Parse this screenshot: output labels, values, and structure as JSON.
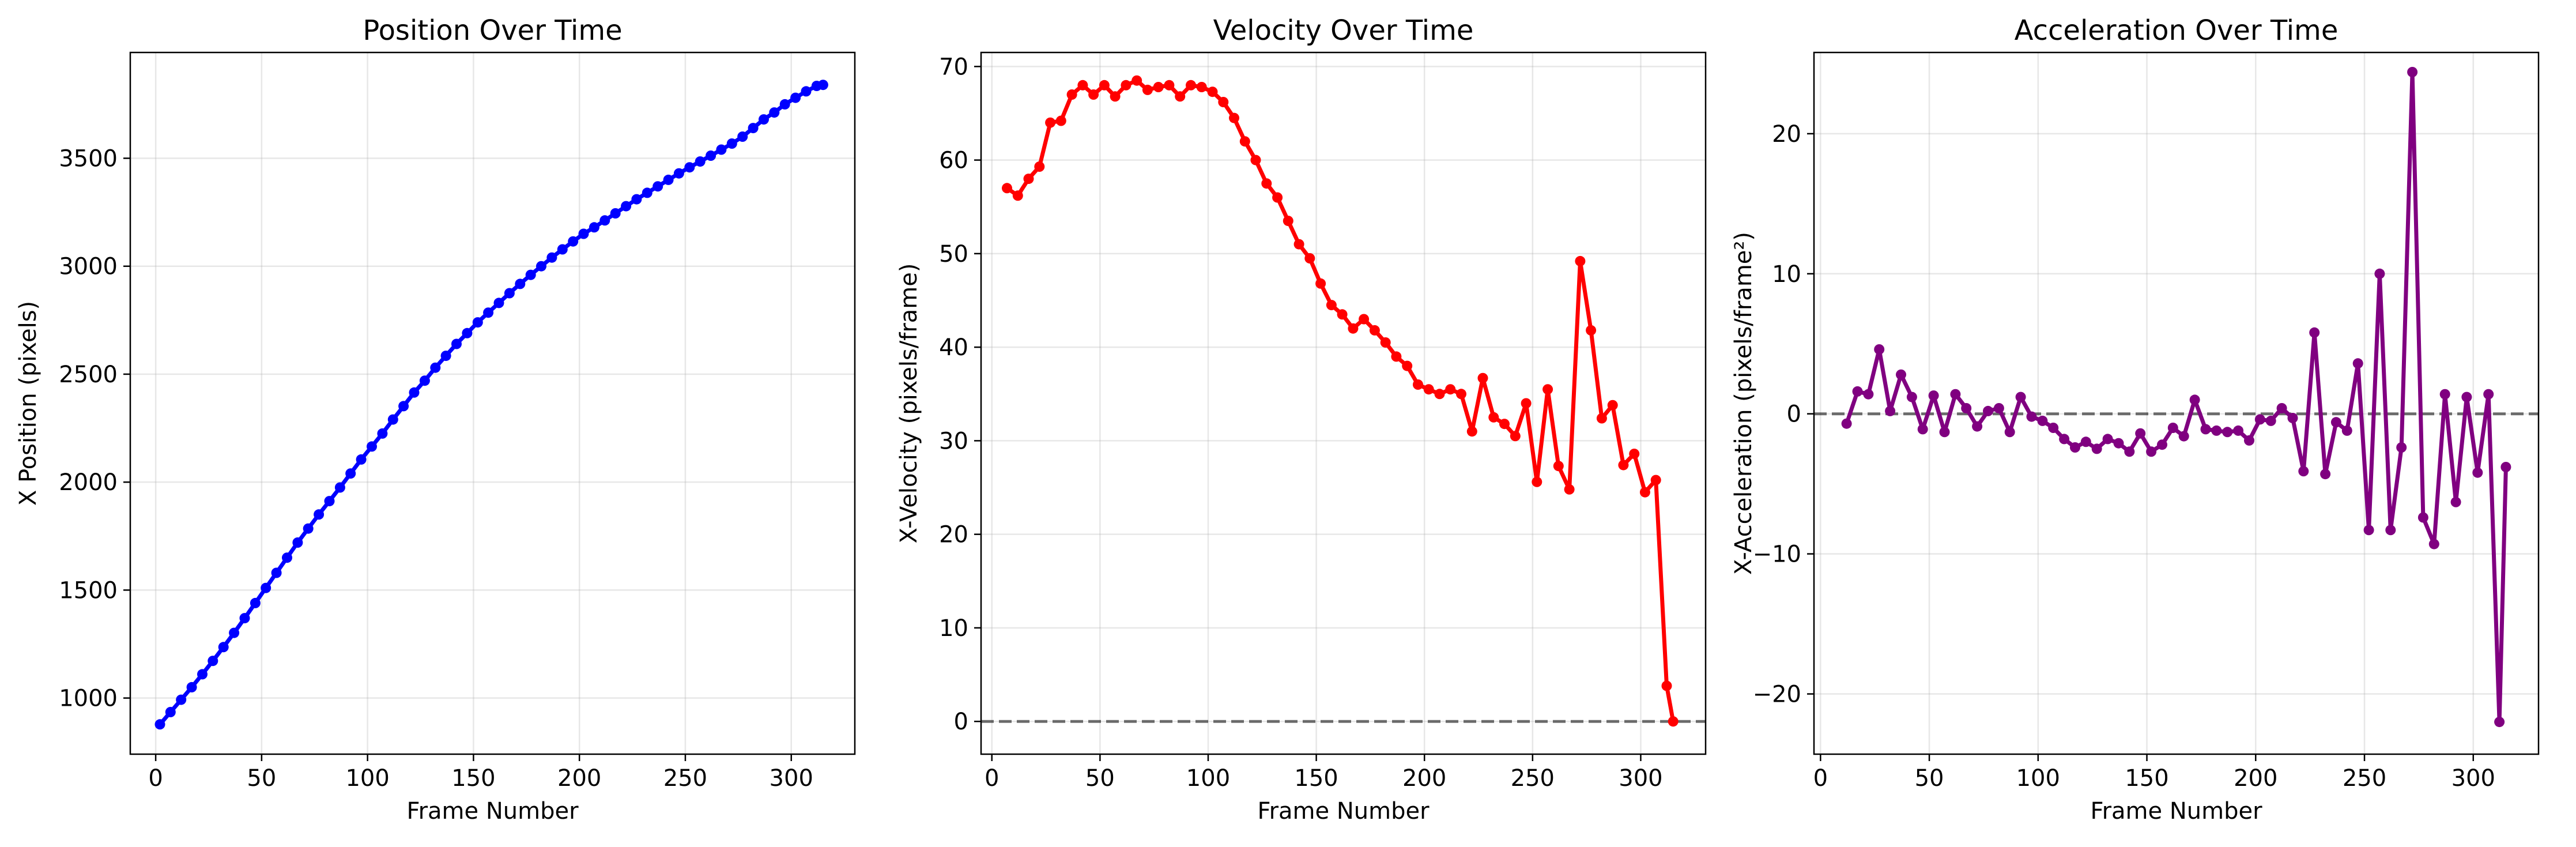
{
  "chart_data": [
    {
      "type": "line",
      "title": "Position Over Time",
      "xlabel": "Frame Number",
      "ylabel": "X Position (pixels)",
      "xlim": [
        -12,
        330
      ],
      "ylim": [
        740,
        3990
      ],
      "xticks": [
        0,
        50,
        100,
        150,
        200,
        250,
        300
      ],
      "yticks": [
        1000,
        1500,
        2000,
        2500,
        3000,
        3500
      ],
      "grid": true,
      "zero_line": false,
      "series": [
        {
          "color": "#0000ff",
          "marker": "circle",
          "x": [
            2,
            7,
            12,
            17,
            22,
            27,
            32,
            37,
            42,
            47,
            52,
            57,
            62,
            67,
            72,
            77,
            82,
            87,
            92,
            97,
            102,
            107,
            112,
            117,
            122,
            127,
            132,
            137,
            142,
            147,
            152,
            157,
            162,
            167,
            172,
            177,
            182,
            187,
            192,
            197,
            202,
            207,
            212,
            217,
            222,
            227,
            232,
            237,
            242,
            247,
            252,
            257,
            262,
            267,
            272,
            277,
            282,
            287,
            292,
            297,
            302,
            307,
            312,
            315
          ],
          "y": [
            878,
            935,
            992,
            1050,
            1110,
            1172,
            1236,
            1302,
            1370,
            1440,
            1510,
            1580,
            1650,
            1720,
            1785,
            1850,
            1912,
            1975,
            2040,
            2105,
            2165,
            2225,
            2290,
            2352,
            2415,
            2470,
            2530,
            2585,
            2640,
            2690,
            2740,
            2785,
            2830,
            2875,
            2918,
            2960,
            3000,
            3040,
            3078,
            3115,
            3150,
            3180,
            3212,
            3245,
            3278,
            3310,
            3340,
            3370,
            3400,
            3430,
            3458,
            3485,
            3512,
            3540,
            3568,
            3600,
            3640,
            3680,
            3712,
            3750,
            3780,
            3810,
            3835,
            3840
          ]
        }
      ]
    },
    {
      "type": "line",
      "title": "Velocity Over Time",
      "xlabel": "Frame Number",
      "ylabel": "X-Velocity (pixels/frame)",
      "xlim": [
        -5,
        330
      ],
      "ylim": [
        -3.5,
        71.5
      ],
      "xticks": [
        0,
        50,
        100,
        150,
        200,
        250,
        300
      ],
      "yticks": [
        0,
        10,
        20,
        30,
        40,
        50,
        60,
        70
      ],
      "grid": true,
      "zero_line": true,
      "series": [
        {
          "color": "#ff0000",
          "marker": "circle",
          "x": [
            7,
            12,
            17,
            22,
            27,
            32,
            37,
            42,
            47,
            52,
            57,
            62,
            67,
            72,
            77,
            82,
            87,
            92,
            97,
            102,
            107,
            112,
            117,
            122,
            127,
            132,
            137,
            142,
            147,
            152,
            157,
            162,
            167,
            172,
            177,
            182,
            187,
            192,
            197,
            202,
            207,
            212,
            217,
            222,
            227,
            232,
            237,
            242,
            247,
            252,
            257,
            262,
            267,
            272,
            277,
            282,
            287,
            292,
            297,
            302,
            307,
            312,
            315
          ],
          "y": [
            57,
            56.2,
            58,
            59.3,
            64,
            64.2,
            67,
            68,
            67,
            68,
            66.8,
            68,
            68.5,
            67.5,
            67.8,
            68,
            66.8,
            68,
            67.8,
            67.3,
            66.2,
            64.5,
            62,
            60,
            57.5,
            56,
            53.5,
            51,
            49.5,
            46.8,
            44.5,
            43.5,
            42,
            43,
            41.8,
            40.5,
            39,
            38,
            36,
            35.5,
            35,
            35.5,
            35,
            31,
            36.7,
            32.5,
            31.8,
            30.5,
            34,
            25.6,
            35.5,
            27.3,
            24.8,
            49.2,
            41.8,
            32.4,
            33.8,
            27.4,
            28.6,
            24.5,
            25.8,
            3.8,
            0
          ]
        }
      ]
    },
    {
      "type": "line",
      "title": "Acceleration Over Time",
      "xlabel": "Frame Number",
      "ylabel": "X-Acceleration (pixels/frame²)",
      "xlim": [
        -3,
        330
      ],
      "ylim": [
        -24.3,
        25.8
      ],
      "xticks": [
        0,
        50,
        100,
        150,
        200,
        250,
        300
      ],
      "yticks": [
        -20,
        -10,
        0,
        10,
        20
      ],
      "ytick_labels": [
        "−20",
        "−10",
        "0",
        "10",
        "20"
      ],
      "grid": true,
      "zero_line": true,
      "series": [
        {
          "color": "#800080",
          "marker": "circle",
          "x": [
            12,
            17,
            22,
            27,
            32,
            37,
            42,
            47,
            52,
            57,
            62,
            67,
            72,
            77,
            82,
            87,
            92,
            97,
            102,
            107,
            112,
            117,
            122,
            127,
            132,
            137,
            142,
            147,
            152,
            157,
            162,
            167,
            172,
            177,
            182,
            187,
            192,
            197,
            202,
            207,
            212,
            217,
            222,
            227,
            232,
            237,
            242,
            247,
            252,
            257,
            262,
            267,
            272,
            277,
            282,
            287,
            292,
            297,
            302,
            307,
            312,
            315
          ],
          "y": [
            -0.7,
            1.6,
            1.4,
            4.6,
            0.2,
            2.8,
            1.2,
            -1.1,
            1.3,
            -1.3,
            1.4,
            0.4,
            -0.9,
            0.2,
            0.4,
            -1.3,
            1.2,
            -0.2,
            -0.5,
            -1,
            -1.8,
            -2.4,
            -2,
            -2.5,
            -1.8,
            -2.1,
            -2.7,
            -1.4,
            -2.7,
            -2.2,
            -1,
            -1.6,
            1,
            -1.1,
            -1.2,
            -1.3,
            -1.2,
            -1.9,
            -0.4,
            -0.5,
            0.4,
            -0.3,
            -4.1,
            5.8,
            -4.3,
            -0.6,
            -1.2,
            3.6,
            -8.3,
            10,
            -8.3,
            -2.4,
            24.4,
            -7.4,
            -9.3,
            1.4,
            -6.3,
            1.2,
            -4.2,
            1.4,
            -22,
            -3.8
          ]
        }
      ]
    }
  ]
}
